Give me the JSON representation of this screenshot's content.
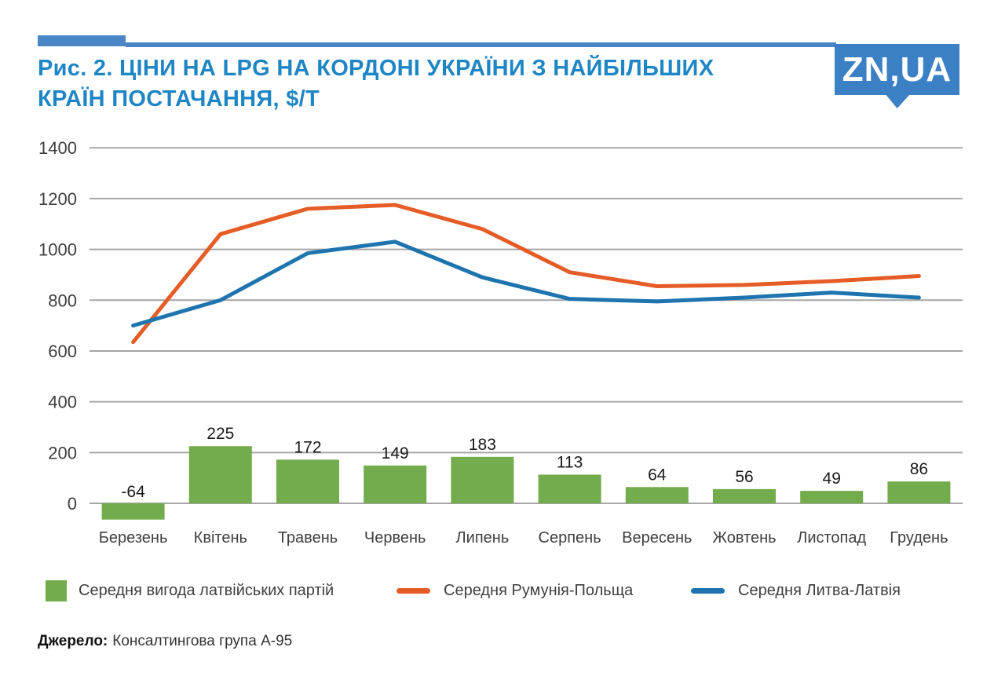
{
  "figure": {
    "title_line1": "Рис. 2. ЦІНИ НА LPG  НА КОРДОНІ УКРАЇНИ З НАЙБІЛЬШИХ",
    "title_line2": "КРАЇН ПОСТАЧАННЯ, $/Т",
    "logo_text": "ZN,UA",
    "source_label": "Джерело:",
    "source_text": "Консалтингова група А-95"
  },
  "colors": {
    "title_blue": "#1E86C5",
    "decor_blue": "#4A86C5",
    "logo_blue": "#3B80C5",
    "bar_green": "#72AC4C",
    "line_orange": "#E55C26",
    "line_blue": "#1E74AE",
    "grid": "#A6A6A6",
    "axis_text": "#3F3F3F",
    "bar_label_text": "#1A1A1A"
  },
  "chart_data": {
    "type": "combo",
    "title": "Ціни на LPG на кордоні України з найбільших країн постачання, $/т",
    "categories": [
      "Березень",
      "Квітень",
      "Травень",
      "Червень",
      "Липень",
      "Серпень",
      "Вересень",
      "Жовтень",
      "Листопад",
      "Грудень"
    ],
    "series": [
      {
        "name": "Середня вигода латвійських партій",
        "type": "bar",
        "color": "#72AC4C",
        "values": [
          -64,
          225,
          172,
          149,
          183,
          113,
          64,
          56,
          49,
          86
        ],
        "data_labels": true
      },
      {
        "name": "Середня Румунія-Польща",
        "type": "line",
        "color": "#E55C26",
        "values": [
          635,
          1060,
          1160,
          1175,
          1080,
          910,
          855,
          860,
          875,
          895
        ]
      },
      {
        "name": "Середня Литва-Латвія",
        "type": "line",
        "color": "#1E74AE",
        "values": [
          700,
          800,
          985,
          1030,
          890,
          805,
          795,
          810,
          830,
          810
        ]
      }
    ],
    "yticks": [
      0,
      200,
      400,
      600,
      800,
      1000,
      1200,
      1400
    ],
    "ylim": [
      -100,
      1400
    ],
    "xlabel": "",
    "ylabel": "",
    "grid": "horizontal",
    "legend_position": "bottom"
  }
}
